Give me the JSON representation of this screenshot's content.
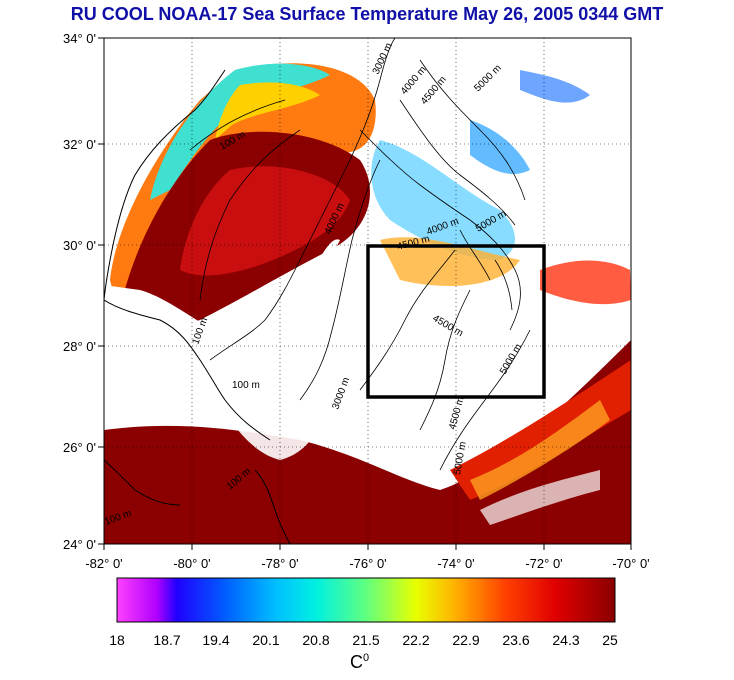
{
  "title": "RU COOL  NOAA-17 Sea Surface Temperature May 26, 2005 0344 GMT",
  "map": {
    "lat_labels": [
      "34° 0'",
      "32° 0'",
      "30° 0'",
      "28° 0'",
      "26° 0'",
      "24° 0'"
    ],
    "lon_labels": [
      "-82° 0'",
      "-80° 0'",
      "-78° 0'",
      "-76° 0'",
      "-74° 0'",
      "-72° 0'",
      "-70° 0'"
    ],
    "contour_labels": [
      "100 m",
      "3000 m",
      "4000 m",
      "4500 m",
      "5000 m"
    ],
    "study_box": {
      "west": -76,
      "east": -72,
      "south": 27,
      "north": 30
    }
  },
  "colorbar": {
    "ticks": [
      "18",
      "18.7",
      "19.4",
      "20.1",
      "20.8",
      "21.5",
      "22.2",
      "22.9",
      "23.6",
      "24.3",
      "25"
    ],
    "unit_base": "C",
    "unit_sup": "0"
  },
  "colors": {
    "title": "#1010a8",
    "warm": "#8b0000",
    "land_mask": "#ffffff"
  }
}
